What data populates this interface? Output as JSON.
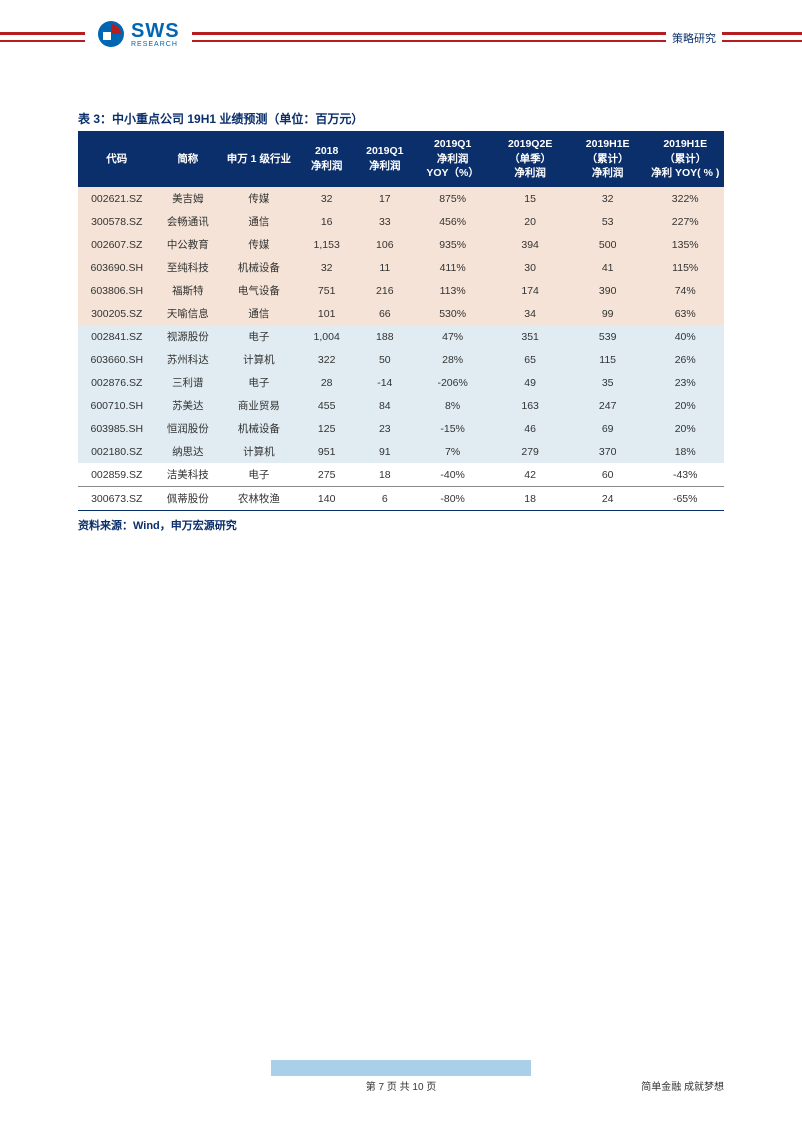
{
  "header": {
    "logo_main": "SWS",
    "logo_sub": "RESEARCH",
    "right_label": "策略研究"
  },
  "table": {
    "title": "表 3：中小重点公司 19H1 业绩预测（单位：百万元）",
    "columns": [
      "代码",
      "简称",
      "申万 1 级行业",
      "2018\n净利润",
      "2019Q1\n净利润",
      "2019Q1\n净利润\nYOY（%）",
      "2019Q2E\n（单季）\n净利润",
      "2019H1E\n（累计）\n净利润",
      "2019H1E\n（累计）\n净利 YOY( % )"
    ],
    "col_widths": [
      "12%",
      "10%",
      "12%",
      "9%",
      "9%",
      "12%",
      "12%",
      "12%",
      "12%"
    ],
    "groups": [
      {
        "class": "grp-a",
        "bg": "#f4e3d6",
        "rows": [
          [
            "002621.SZ",
            "美吉姆",
            "传媒",
            "32",
            "17",
            "875%",
            "15",
            "32",
            "322%"
          ],
          [
            "300578.SZ",
            "会畅通讯",
            "通信",
            "16",
            "33",
            "456%",
            "20",
            "53",
            "227%"
          ],
          [
            "002607.SZ",
            "中公教育",
            "传媒",
            "1,153",
            "106",
            "935%",
            "394",
            "500",
            "135%"
          ],
          [
            "603690.SH",
            "至纯科技",
            "机械设备",
            "32",
            "11",
            "411%",
            "30",
            "41",
            "115%"
          ],
          [
            "603806.SH",
            "福斯特",
            "电气设备",
            "751",
            "216",
            "113%",
            "174",
            "390",
            "74%"
          ],
          [
            "300205.SZ",
            "天喻信息",
            "通信",
            "101",
            "66",
            "530%",
            "34",
            "99",
            "63%"
          ]
        ]
      },
      {
        "class": "grp-b",
        "bg": "#e0ecf2",
        "rows": [
          [
            "002841.SZ",
            "视源股份",
            "电子",
            "1,004",
            "188",
            "47%",
            "351",
            "539",
            "40%"
          ],
          [
            "603660.SH",
            "苏州科达",
            "计算机",
            "322",
            "50",
            "28%",
            "65",
            "115",
            "26%"
          ],
          [
            "002876.SZ",
            "三利谱",
            "电子",
            "28",
            "-14",
            "-206%",
            "49",
            "35",
            "23%"
          ],
          [
            "600710.SH",
            "苏美达",
            "商业贸易",
            "455",
            "84",
            "8%",
            "163",
            "247",
            "20%"
          ],
          [
            "603985.SH",
            "恒润股份",
            "机械设备",
            "125",
            "23",
            "-15%",
            "46",
            "69",
            "20%"
          ],
          [
            "002180.SZ",
            "纳思达",
            "计算机",
            "951",
            "91",
            "7%",
            "279",
            "370",
            "18%"
          ]
        ]
      },
      {
        "class": "grp-c",
        "bg": "#ffffff",
        "rows": [
          [
            "002859.SZ",
            "洁美科技",
            "电子",
            "275",
            "18",
            "-40%",
            "42",
            "60",
            "-43%"
          ],
          [
            "300673.SZ",
            "佩蒂股份",
            "农林牧渔",
            "140",
            "6",
            "-80%",
            "18",
            "24",
            "-65%"
          ]
        ]
      }
    ],
    "source": "资料来源：Wind，申万宏源研究"
  },
  "footer": {
    "page": "第 7 页 共 10 页",
    "slogan": "简单金融 成就梦想"
  },
  "colors": {
    "brand_blue": "#0b2f6b",
    "rule_red": "#b41e22",
    "footer_bar": "#a9d0e8",
    "group_a_bg": "#f4e3d6",
    "group_b_bg": "#e0ecf2",
    "group_c_bg": "#ffffff"
  }
}
